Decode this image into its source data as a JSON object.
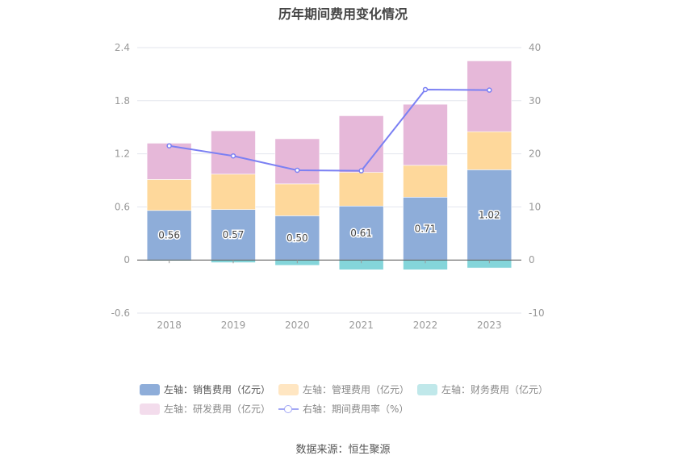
{
  "chart_data": {
    "type": "bar",
    "stacked": true,
    "title": "历年期间费用变化情况",
    "categories": [
      "2018",
      "2019",
      "2020",
      "2021",
      "2022",
      "2023"
    ],
    "left_axis": {
      "ylim": [
        -0.6,
        2.4
      ],
      "ticks": [
        "-0.6",
        "0",
        "0.6",
        "1.2",
        "1.8",
        "2.4"
      ]
    },
    "right_axis": {
      "ylim": [
        -10,
        40
      ],
      "ticks": [
        "-10",
        "0",
        "10",
        "20",
        "30",
        "40"
      ]
    },
    "series": [
      {
        "name": "左轴：销售费用（亿元）",
        "axis": "left",
        "kind": "bar",
        "color": "#8eadd9",
        "values": [
          0.56,
          0.57,
          0.5,
          0.61,
          0.71,
          1.02
        ],
        "labels": [
          "0.56",
          "0.57",
          "0.50",
          "0.61",
          "0.71",
          "1.02"
        ]
      },
      {
        "name": "左轴：管理费用（亿元）",
        "axis": "left",
        "kind": "bar",
        "color": "#fed89b",
        "values": [
          0.35,
          0.4,
          0.36,
          0.38,
          0.36,
          0.43
        ]
      },
      {
        "name": "左轴：财务费用（亿元）",
        "axis": "left",
        "kind": "bar",
        "color": "#84d5da",
        "values": [
          -0.01,
          -0.03,
          -0.06,
          -0.11,
          -0.11,
          -0.09
        ]
      },
      {
        "name": "左轴：研发费用（亿元）",
        "axis": "left",
        "kind": "bar",
        "color": "#e6b8d9",
        "values": [
          0.41,
          0.49,
          0.51,
          0.64,
          0.69,
          0.8
        ]
      },
      {
        "name": "右轴：期间费用率（%）",
        "axis": "right",
        "kind": "line",
        "color": "#7b80f3",
        "values": [
          21.5,
          19.6,
          16.9,
          16.8,
          32.1,
          32.0
        ]
      }
    ],
    "legend_placement": "bottom",
    "grid": true
  },
  "legend": {
    "items": [
      {
        "label": "左轴：销售费用（亿元）",
        "color": "#8eadd9"
      },
      {
        "label": "左轴：管理费用（亿元）",
        "color": "#ffe6c2"
      },
      {
        "label": "左轴：财务费用（亿元）",
        "color": "#c0e8ea"
      },
      {
        "label": "左轴：研发费用（亿元）",
        "color": "#f3dcec"
      },
      {
        "label": "右轴：期间费用率（%）",
        "color": "#a3a8f5"
      }
    ]
  },
  "source": "数据来源：恒生聚源"
}
